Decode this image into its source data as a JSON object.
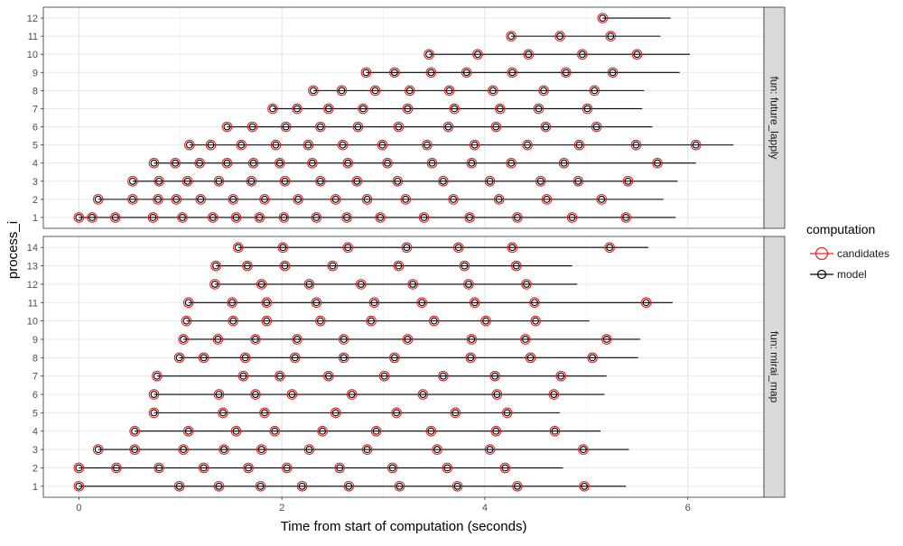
{
  "chart_data": {
    "type": "scatter",
    "xlabel": "Time from start of computation (seconds)",
    "ylabel": "process_i",
    "xlim": [
      -0.35,
      6.75
    ],
    "x_ticks": [
      0,
      2,
      4,
      6
    ],
    "grid": true,
    "legend": {
      "title": "computation",
      "position": "right",
      "entries": [
        {
          "name": "candidates",
          "color": "#E8211D"
        },
        {
          "name": "model",
          "color": "#000000"
        }
      ]
    },
    "panels": [
      {
        "strip": "fun: future_lapply",
        "y_categories": [
          "1",
          "2",
          "3",
          "4",
          "5",
          "6",
          "7",
          "8",
          "9",
          "10",
          "11",
          "12"
        ],
        "rows": [
          {
            "process": "1",
            "points": [
              0,
              0.13,
              0.36,
              0.73,
              1.02,
              1.32,
              1.55,
              1.78,
              2.02,
              2.34,
              2.64,
              2.97,
              3.4,
              3.85,
              4.32,
              4.86,
              5.39
            ],
            "end": 5.88
          },
          {
            "process": "2",
            "points": [
              0.19,
              0.53,
              0.78,
              0.96,
              1.2,
              1.52,
              1.83,
              2.16,
              2.53,
              2.84,
              3.22,
              3.69,
              4.14,
              4.61,
              5.15
            ],
            "end": 5.76
          },
          {
            "process": "3",
            "points": [
              0.53,
              0.79,
              1.07,
              1.38,
              1.7,
              2.03,
              2.38,
              2.74,
              3.14,
              3.59,
              4.05,
              4.55,
              4.92,
              5.41
            ],
            "end": 5.9
          },
          {
            "process": "4",
            "points": [
              0.74,
              0.95,
              1.19,
              1.46,
              1.72,
              1.98,
              2.3,
              2.65,
              3.04,
              3.48,
              3.87,
              4.26,
              4.78,
              5.7
            ],
            "end": 6.08
          },
          {
            "process": "5",
            "points": [
              1.09,
              1.3,
              1.6,
              1.94,
              2.26,
              2.6,
              2.99,
              3.43,
              3.9,
              4.42,
              4.93,
              5.49,
              6.08
            ],
            "end": 6.45
          },
          {
            "process": "6",
            "points": [
              1.46,
              1.71,
              2.04,
              2.38,
              2.75,
              3.15,
              3.64,
              4.11,
              4.6,
              5.1
            ],
            "end": 5.65
          },
          {
            "process": "7",
            "points": [
              1.91,
              2.15,
              2.46,
              2.8,
              3.24,
              3.7,
              4.15,
              4.53,
              5.01
            ],
            "end": 5.55
          },
          {
            "process": "8",
            "points": [
              2.31,
              2.59,
              2.92,
              3.26,
              3.65,
              4.08,
              4.58,
              5.08
            ],
            "end": 5.57
          },
          {
            "process": "9",
            "points": [
              2.83,
              3.11,
              3.47,
              3.82,
              4.27,
              4.8,
              5.26
            ],
            "end": 5.92
          },
          {
            "process": "10",
            "points": [
              3.45,
              3.93,
              4.43,
              4.96,
              5.5
            ],
            "end": 6.02
          },
          {
            "process": "11",
            "points": [
              4.26,
              4.74,
              5.24
            ],
            "end": 5.73
          },
          {
            "process": "12",
            "points": [
              5.16
            ],
            "end": 5.83
          }
        ]
      },
      {
        "strip": "fun: mirai_map",
        "y_categories": [
          "1",
          "2",
          "3",
          "4",
          "5",
          "6",
          "7",
          "8",
          "9",
          "10",
          "11",
          "12",
          "13",
          "14"
        ],
        "rows": [
          {
            "process": "1",
            "points": [
              0,
              0.99,
              1.38,
              1.79,
              2.2,
              2.66,
              3.16,
              3.73,
              4.32,
              4.98
            ],
            "end": 5.39
          },
          {
            "process": "2",
            "points": [
              0,
              0.37,
              0.79,
              1.23,
              1.67,
              2.05,
              2.57,
              3.09,
              3.63,
              4.2
            ],
            "end": 4.77
          },
          {
            "process": "3",
            "points": [
              0.19,
              0.55,
              1.03,
              1.43,
              1.8,
              2.27,
              2.84,
              3.53,
              4.05,
              4.97
            ],
            "end": 5.42
          },
          {
            "process": "4",
            "points": [
              0.55,
              1.08,
              1.55,
              1.93,
              2.4,
              2.93,
              3.47,
              4.11,
              4.69
            ],
            "end": 5.14
          },
          {
            "process": "5",
            "points": [
              0.74,
              1.42,
              1.83,
              2.53,
              3.13,
              3.71,
              4.22
            ],
            "end": 4.74
          },
          {
            "process": "6",
            "points": [
              0.74,
              1.38,
              1.74,
              2.1,
              2.69,
              3.39,
              4.12,
              4.68
            ],
            "end": 5.18
          },
          {
            "process": "7",
            "points": [
              0.77,
              1.62,
              1.98,
              2.46,
              3.01,
              3.59,
              4.1,
              4.75
            ],
            "end": 5.2
          },
          {
            "process": "8",
            "points": [
              0.99,
              1.23,
              1.64,
              2.13,
              2.61,
              3.11,
              3.86,
              4.45,
              5.06
            ],
            "end": 5.51
          },
          {
            "process": "9",
            "points": [
              1.03,
              1.37,
              1.74,
              2.15,
              2.61,
              3.24,
              3.87,
              4.4,
              5.2
            ],
            "end": 5.53
          },
          {
            "process": "10",
            "points": [
              1.06,
              1.52,
              1.85,
              2.38,
              2.88,
              3.5,
              4.01,
              4.5
            ],
            "end": 5.03
          },
          {
            "process": "11",
            "points": [
              1.08,
              1.51,
              1.85,
              2.34,
              2.91,
              3.38,
              3.9,
              4.49,
              5.59
            ],
            "end": 5.85
          },
          {
            "process": "12",
            "points": [
              1.34,
              1.8,
              2.27,
              2.78,
              3.29,
              3.84,
              4.41
            ],
            "end": 4.91
          },
          {
            "process": "13",
            "points": [
              1.35,
              1.66,
              2.03,
              2.5,
              3.15,
              3.8,
              4.31
            ],
            "end": 4.86
          },
          {
            "process": "14",
            "points": [
              1.57,
              2.01,
              2.65,
              3.23,
              3.74,
              4.27,
              5.23
            ],
            "end": 5.61
          }
        ]
      }
    ]
  }
}
